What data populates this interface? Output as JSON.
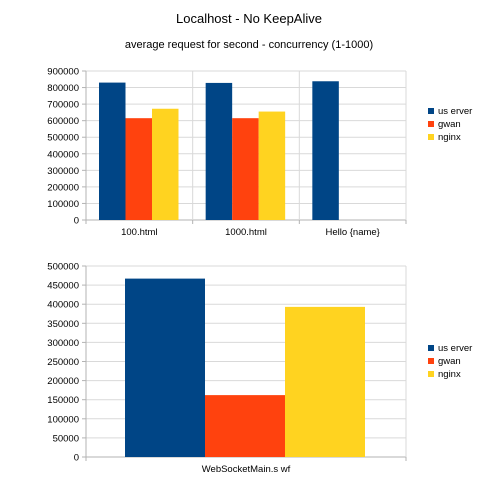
{
  "title": "Localhost - No KeepAlive",
  "subtitle": "average request for second - concurrency (1-1000)",
  "colors": {
    "userver": "#004586",
    "gwan": "#ff420e",
    "nginx": "#ffd320",
    "grid": "#d9d9d9",
    "axis": "#b3b3b3"
  },
  "chart_data": [
    {
      "type": "bar",
      "categories": [
        "100.html",
        "1000.html",
        "Hello {name}"
      ],
      "series": [
        {
          "name": "us erver",
          "values": [
            830000,
            828000,
            838000
          ]
        },
        {
          "name": "gwan",
          "values": [
            615000,
            615000,
            null
          ]
        },
        {
          "name": "nginx",
          "values": [
            672000,
            655000,
            null
          ]
        }
      ],
      "yticks": [
        "900000",
        "800000",
        "700000",
        "600000",
        "500000",
        "400000",
        "300000",
        "200000",
        "100000",
        "0"
      ],
      "ylim": [
        0,
        900000
      ],
      "grid": true,
      "legend": "right"
    },
    {
      "type": "bar",
      "categories": [
        "WebSocketMain.s wf"
      ],
      "series": [
        {
          "name": "us erver",
          "values": [
            467000
          ]
        },
        {
          "name": "gwan",
          "values": [
            162000
          ]
        },
        {
          "name": "nginx",
          "values": [
            393000
          ]
        }
      ],
      "yticks": [
        "500000",
        "450000",
        "400000",
        "350000",
        "300000",
        "250000",
        "200000",
        "150000",
        "100000",
        "50000",
        "0"
      ],
      "ylim": [
        0,
        500000
      ],
      "grid": true,
      "legend": "right"
    }
  ]
}
